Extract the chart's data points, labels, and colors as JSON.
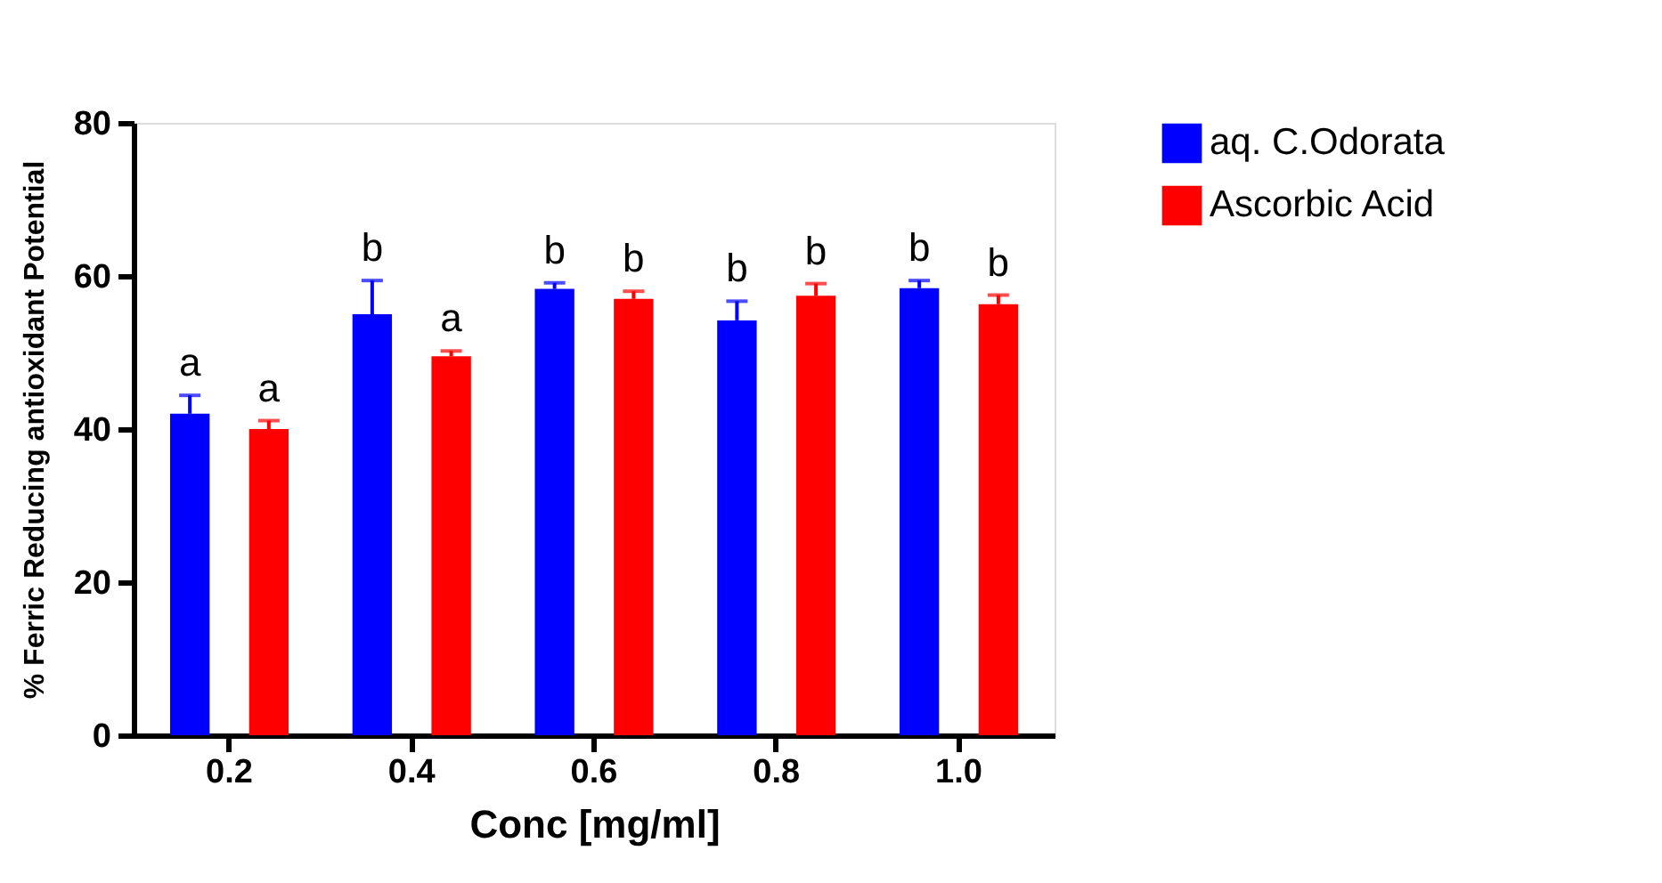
{
  "chart_data": {
    "type": "bar",
    "xlabel": "Conc [mg/ml]",
    "ylabel": "% Ferric Reducing antioxidant Potential",
    "categories": [
      "0.2",
      "0.4",
      "0.6",
      "0.8",
      "1.0"
    ],
    "series": [
      {
        "name": "aq. C.Odorata",
        "color": "#0000ff",
        "values": [
          42.0,
          55.0,
          58.3,
          54.2,
          58.4
        ],
        "errors": [
          [
            42.0,
            44.4
          ],
          [
            55.0,
            59.4
          ],
          [
            58.3,
            59.1
          ],
          [
            54.2,
            56.7
          ],
          [
            58.4,
            59.4
          ]
        ],
        "value_labels": [
          "a",
          "b",
          "b",
          "b",
          "b"
        ]
      },
      {
        "name": "Ascorbic Acid",
        "color": "#ff0000",
        "values": [
          40.0,
          49.5,
          57.0,
          57.4,
          56.3
        ],
        "errors": [
          [
            40.0,
            41.1
          ],
          [
            49.5,
            50.2
          ],
          [
            57.0,
            58.0
          ],
          [
            57.4,
            59.0
          ],
          [
            56.3,
            57.5
          ]
        ],
        "value_labels": [
          "a",
          "a",
          "b",
          "b",
          "b"
        ]
      }
    ],
    "ylim": [
      0,
      80
    ],
    "yticks": [
      0,
      20,
      40,
      60,
      80
    ],
    "grid": false,
    "legend": "top right"
  }
}
